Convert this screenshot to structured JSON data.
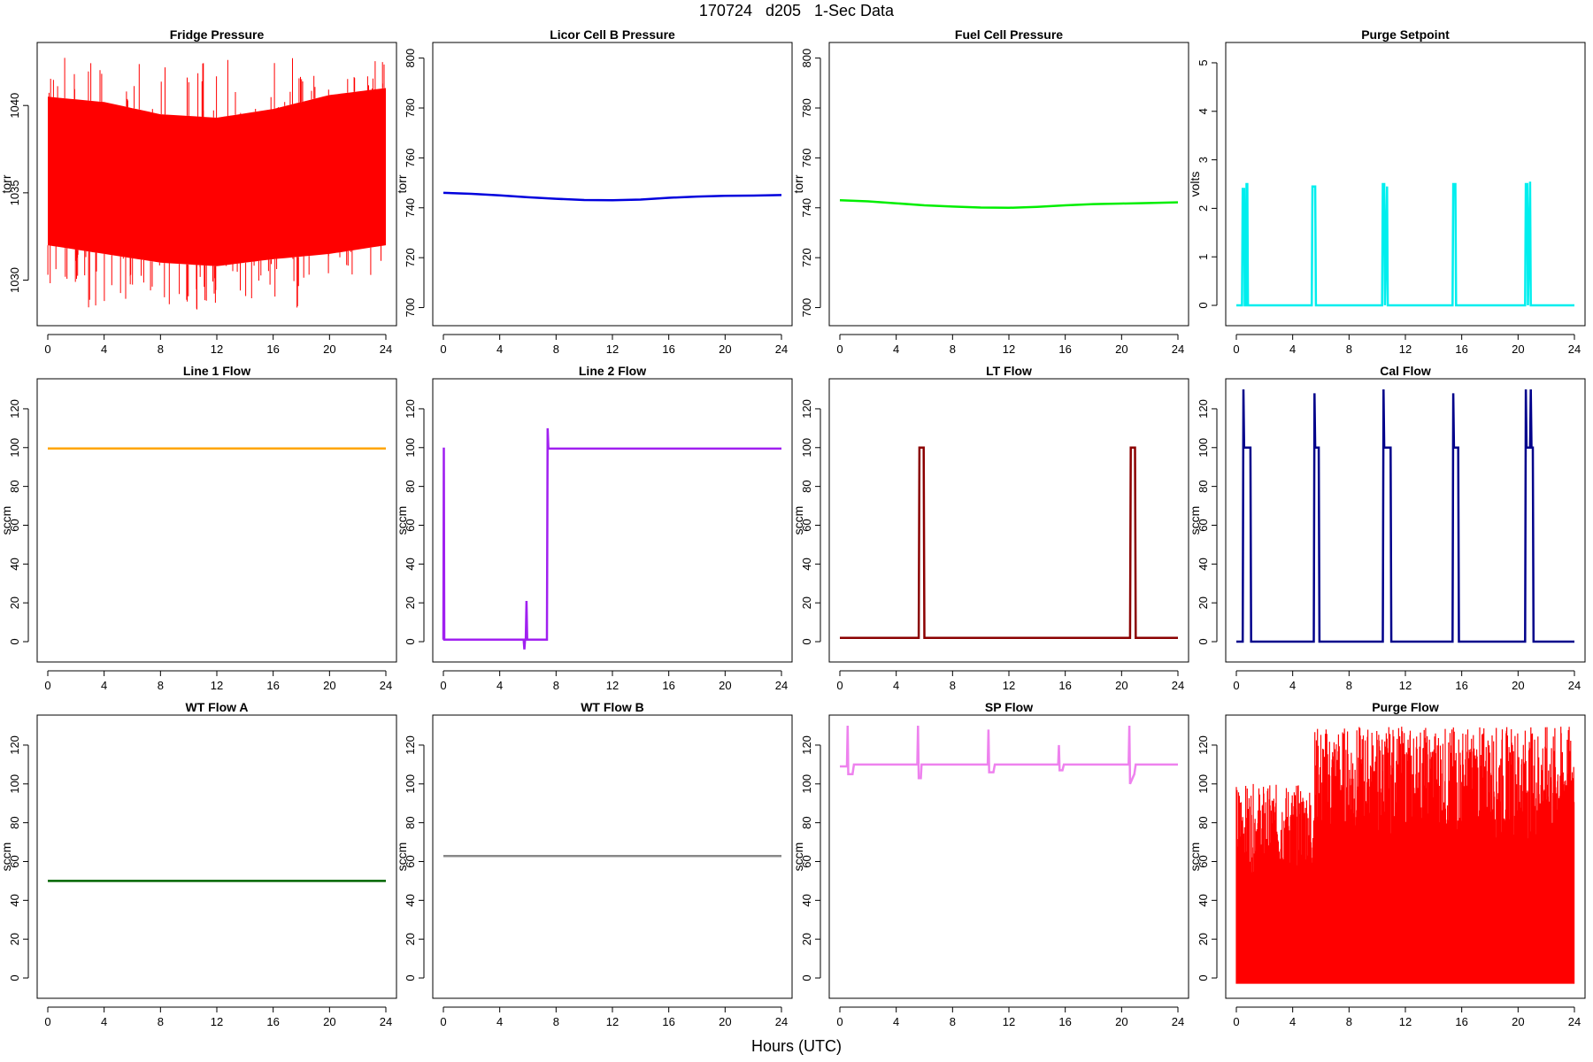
{
  "page": {
    "title": "170724   d205   1-Sec Data",
    "xlabel": "Hours (UTC)"
  },
  "chart_data": [
    {
      "type": "line",
      "title": "Fridge Pressure",
      "ylabel": "torr",
      "xlim": [
        0,
        24
      ],
      "ylim": [
        1028,
        1043
      ],
      "xticks": [
        0,
        4,
        8,
        12,
        16,
        20,
        24
      ],
      "yticks": [
        1030,
        1035,
        1040
      ],
      "series": [
        {
          "color": "#ff0000",
          "render": "band",
          "x": [
            0,
            4,
            8,
            12,
            16,
            20,
            24
          ],
          "low": [
            1032.0,
            1031.5,
            1031.0,
            1030.8,
            1031.2,
            1031.5,
            1032.0
          ],
          "high": [
            1040.5,
            1040.2,
            1039.5,
            1039.3,
            1039.8,
            1040.6,
            1041.0
          ],
          "spike_min": 1028.3,
          "spike_max": 1042.8
        }
      ]
    },
    {
      "type": "line",
      "title": "Licor Cell B Pressure",
      "ylabel": "torr",
      "xlim": [
        0,
        24
      ],
      "ylim": [
        697,
        802
      ],
      "xticks": [
        0,
        4,
        8,
        12,
        16,
        20,
        24
      ],
      "yticks": [
        700,
        720,
        740,
        760,
        780,
        800
      ],
      "series": [
        {
          "color": "#0000dd",
          "x": [
            0,
            2,
            4,
            6,
            8,
            10,
            12,
            14,
            16,
            18,
            20,
            22,
            24
          ],
          "y": [
            746.0,
            745.6,
            745.0,
            744.2,
            743.6,
            743.1,
            743.0,
            743.3,
            744.0,
            744.5,
            744.8,
            744.9,
            745.1
          ]
        }
      ]
    },
    {
      "type": "line",
      "title": "Fuel Cell Pressure",
      "ylabel": "torr",
      "xlim": [
        0,
        24
      ],
      "ylim": [
        697,
        802
      ],
      "xticks": [
        0,
        4,
        8,
        12,
        16,
        20,
        24
      ],
      "yticks": [
        700,
        720,
        740,
        760,
        780,
        800
      ],
      "series": [
        {
          "color": "#00ee00",
          "x": [
            0,
            2,
            4,
            6,
            8,
            10,
            12,
            14,
            16,
            18,
            20,
            22,
            24
          ],
          "y": [
            743.0,
            742.6,
            741.8,
            741.0,
            740.5,
            740.1,
            740.0,
            740.4,
            741.0,
            741.5,
            741.7,
            741.9,
            742.2
          ]
        }
      ]
    },
    {
      "type": "line",
      "title": "Purge Setpoint",
      "ylabel": "volts",
      "xlim": [
        0,
        24
      ],
      "ylim": [
        -0.2,
        5.2
      ],
      "xticks": [
        0,
        4,
        8,
        12,
        16,
        20,
        24
      ],
      "yticks": [
        0,
        1,
        2,
        3,
        4,
        5
      ],
      "series": [
        {
          "color": "#00eeee",
          "x": [
            0,
            0.4,
            0.45,
            0.55,
            0.6,
            0.68,
            0.72,
            0.78,
            0.82,
            5.35,
            5.4,
            5.6,
            5.65,
            10.35,
            10.4,
            10.5,
            10.55,
            10.7,
            10.75,
            15.35,
            15.4,
            15.55,
            15.6,
            20.5,
            20.55,
            20.65,
            20.7,
            20.85,
            20.9,
            24
          ],
          "y": [
            0,
            0,
            2.4,
            2.4,
            0,
            0,
            2.5,
            2.5,
            0,
            0,
            2.45,
            2.45,
            0,
            0,
            2.5,
            2.5,
            0,
            2.45,
            0,
            0,
            2.5,
            2.5,
            0,
            0,
            2.5,
            2.5,
            0,
            2.55,
            0,
            0
          ]
        }
      ]
    },
    {
      "type": "line",
      "title": "Line 1 Flow",
      "ylabel": "sccm",
      "xlim": [
        0,
        24
      ],
      "ylim": [
        -5,
        130
      ],
      "xticks": [
        0,
        4,
        8,
        12,
        16,
        20,
        24
      ],
      "yticks": [
        0,
        20,
        40,
        60,
        80,
        100,
        120
      ],
      "series": [
        {
          "color": "#ffa500",
          "x": [
            0,
            24
          ],
          "y": [
            99.6,
            99.6
          ]
        }
      ]
    },
    {
      "type": "line",
      "title": "Line 2 Flow",
      "ylabel": "sccm",
      "xlim": [
        0,
        24
      ],
      "ylim": [
        -5,
        130
      ],
      "xticks": [
        0,
        4,
        8,
        12,
        16,
        20,
        24
      ],
      "yticks": [
        0,
        20,
        40,
        60,
        80,
        100,
        120
      ],
      "series": [
        {
          "color": "#a020f0",
          "x": [
            0,
            0.03,
            0.06,
            5.7,
            5.75,
            5.8,
            5.85,
            5.9,
            5.95,
            6.0,
            7.35,
            7.4,
            7.45,
            7.5,
            24
          ],
          "y": [
            1,
            100,
            1,
            1,
            -4,
            1,
            1,
            21,
            1,
            1,
            1,
            110,
            100,
            99.5,
            99.5
          ]
        }
      ]
    },
    {
      "type": "line",
      "title": "LT Flow",
      "ylabel": "sccm",
      "xlim": [
        0,
        24
      ],
      "ylim": [
        -5,
        130
      ],
      "xticks": [
        0,
        4,
        8,
        12,
        16,
        20,
        24
      ],
      "yticks": [
        0,
        20,
        40,
        60,
        80,
        100,
        120
      ],
      "series": [
        {
          "color": "#8b0000",
          "x": [
            0,
            5.6,
            5.65,
            5.95,
            6.0,
            20.6,
            20.65,
            20.95,
            21.0,
            24
          ],
          "y": [
            2,
            2,
            100,
            100,
            2,
            2,
            100,
            100,
            2,
            2
          ]
        }
      ]
    },
    {
      "type": "line",
      "title": "Cal Flow",
      "ylabel": "sccm",
      "xlim": [
        0,
        24
      ],
      "ylim": [
        -5,
        130
      ],
      "xticks": [
        0,
        4,
        8,
        12,
        16,
        20,
        24
      ],
      "yticks": [
        0,
        20,
        40,
        60,
        80,
        100,
        120
      ],
      "series": [
        {
          "color": "#00008b",
          "x": [
            0,
            0.45,
            0.5,
            0.55,
            1.0,
            1.05,
            5.5,
            5.55,
            5.6,
            5.85,
            5.9,
            10.4,
            10.45,
            10.5,
            10.95,
            11.0,
            15.35,
            15.4,
            15.45,
            15.75,
            15.8,
            20.5,
            20.55,
            20.6,
            20.85,
            20.9,
            20.95,
            21.05,
            21.1,
            24
          ],
          "y": [
            0,
            0,
            130,
            100,
            100,
            0,
            0,
            128,
            100,
            100,
            0,
            0,
            130,
            100,
            100,
            0,
            0,
            128,
            100,
            100,
            0,
            0,
            130,
            100,
            100,
            130,
            100,
            100,
            0,
            0
          ]
        }
      ]
    },
    {
      "type": "line",
      "title": "WT Flow A",
      "ylabel": "sccm",
      "xlim": [
        0,
        24
      ],
      "ylim": [
        -5,
        130
      ],
      "xticks": [
        0,
        4,
        8,
        12,
        16,
        20,
        24
      ],
      "yticks": [
        0,
        20,
        40,
        60,
        80,
        100,
        120
      ],
      "series": [
        {
          "color": "#006400",
          "x": [
            0,
            24
          ],
          "y": [
            50,
            50
          ]
        }
      ]
    },
    {
      "type": "line",
      "title": "WT Flow B",
      "ylabel": "sccm",
      "xlim": [
        0,
        24
      ],
      "ylim": [
        -5,
        130
      ],
      "xticks": [
        0,
        4,
        8,
        12,
        16,
        20,
        24
      ],
      "yticks": [
        0,
        20,
        40,
        60,
        80,
        100,
        120
      ],
      "series": [
        {
          "color": "#888888",
          "x": [
            0,
            24
          ],
          "y": [
            62.8,
            62.8
          ]
        }
      ]
    },
    {
      "type": "line",
      "title": "SP Flow",
      "ylabel": "sccm",
      "xlim": [
        0,
        24
      ],
      "ylim": [
        -5,
        130
      ],
      "xticks": [
        0,
        4,
        8,
        12,
        16,
        20,
        24
      ],
      "yticks": [
        0,
        20,
        40,
        60,
        80,
        100,
        120
      ],
      "series": [
        {
          "color": "#ee82ee",
          "x": [
            0,
            0.5,
            0.55,
            0.6,
            0.9,
            1.0,
            5.5,
            5.55,
            5.6,
            5.75,
            5.8,
            10.5,
            10.55,
            10.6,
            10.9,
            11.0,
            15.5,
            15.55,
            15.6,
            15.8,
            15.9,
            20.5,
            20.55,
            20.6,
            20.9,
            21.0,
            24
          ],
          "y": [
            109,
            109,
            130,
            105,
            105,
            110,
            110,
            130,
            103,
            103,
            110,
            110,
            128,
            106,
            106,
            110,
            110,
            120,
            107,
            107,
            110,
            110,
            130,
            100,
            105,
            110,
            110
          ]
        }
      ]
    },
    {
      "type": "line",
      "title": "Purge Flow",
      "ylabel": "sccm",
      "xlim": [
        0,
        24
      ],
      "ylim": [
        -5,
        130
      ],
      "xticks": [
        0,
        4,
        8,
        12,
        16,
        20,
        24
      ],
      "yticks": [
        0,
        20,
        40,
        60,
        80,
        100,
        120
      ],
      "series": [
        {
          "color": "#ff0000",
          "render": "noise",
          "x": [
            0,
            5.5,
            5.55,
            7.5,
            7.55,
            24
          ],
          "low": [
            -3,
            -3,
            -3,
            -3,
            -3,
            -3
          ],
          "high": [
            100,
            100,
            130,
            130,
            130,
            130
          ]
        }
      ]
    }
  ]
}
